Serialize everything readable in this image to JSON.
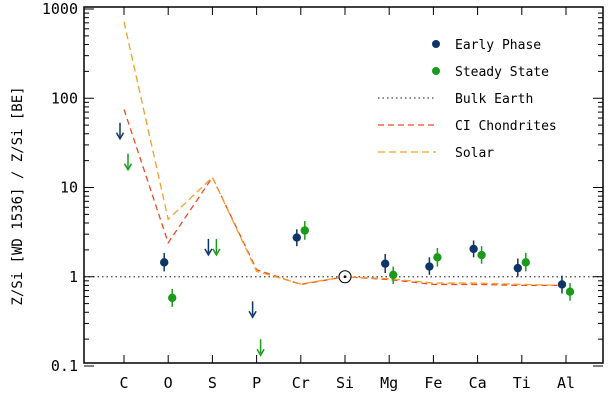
{
  "chart_data": {
    "type": "scatter",
    "title": "",
    "ylabel": "Z/Si  [WD 1536]  /  Z/Si [BE]",
    "xlabel": "",
    "categories": [
      "C",
      "O",
      "S",
      "P",
      "Cr",
      "Si",
      "Mg",
      "Fe",
      "Ca",
      "Ti",
      "Al"
    ],
    "y_scale": "log",
    "ylim": [
      0.1,
      1000
    ],
    "y_ticks": [
      {
        "value": 0.1,
        "label": "0.1"
      },
      {
        "value": 1,
        "label": "1"
      },
      {
        "value": 10,
        "label": "10"
      },
      {
        "value": 100,
        "label": "100"
      },
      {
        "value": 1000,
        "label": "1000"
      }
    ],
    "legend_position": "top-right",
    "colors": {
      "early_phase": "#0d3566",
      "steady_state": "#1a9a1a",
      "bulk_earth": "#444444",
      "ci_chondrites": "#f04a24",
      "solar": "#f2a02a"
    },
    "series": [
      {
        "name": "Early Phase",
        "kind": "points",
        "points": [
          {
            "x": "C",
            "y": 40,
            "upper_limit": true
          },
          {
            "x": "O",
            "y": 1.45,
            "err_lo": 1.15,
            "err_hi": 1.85
          },
          {
            "x": "S",
            "y": 2.0,
            "upper_limit": true
          },
          {
            "x": "P",
            "y": 0.4,
            "upper_limit": true
          },
          {
            "x": "Cr",
            "y": 2.75,
            "err_lo": 2.2,
            "err_hi": 3.4
          },
          {
            "x": "Mg",
            "y": 1.4,
            "err_lo": 1.1,
            "err_hi": 1.8
          },
          {
            "x": "Fe",
            "y": 1.3,
            "err_lo": 1.05,
            "err_hi": 1.65
          },
          {
            "x": "Ca",
            "y": 2.05,
            "err_lo": 1.65,
            "err_hi": 2.55
          },
          {
            "x": "Ti",
            "y": 1.25,
            "err_lo": 1.0,
            "err_hi": 1.6
          },
          {
            "x": "Al",
            "y": 0.82,
            "err_lo": 0.65,
            "err_hi": 1.03
          }
        ]
      },
      {
        "name": "Steady State",
        "kind": "points",
        "points": [
          {
            "x": "C",
            "y": 18,
            "upper_limit": true
          },
          {
            "x": "O",
            "y": 0.58,
            "err_lo": 0.46,
            "err_hi": 0.73
          },
          {
            "x": "S",
            "y": 2.0,
            "upper_limit": true
          },
          {
            "x": "P",
            "y": 0.15,
            "upper_limit": true
          },
          {
            "x": "Cr",
            "y": 3.3,
            "err_lo": 2.6,
            "err_hi": 4.2
          },
          {
            "x": "Mg",
            "y": 1.05,
            "err_lo": 0.83,
            "err_hi": 1.3
          },
          {
            "x": "Fe",
            "y": 1.65,
            "err_lo": 1.3,
            "err_hi": 2.1
          },
          {
            "x": "Ca",
            "y": 1.75,
            "err_lo": 1.4,
            "err_hi": 2.2
          },
          {
            "x": "Ti",
            "y": 1.45,
            "err_lo": 1.15,
            "err_hi": 1.85
          },
          {
            "x": "Al",
            "y": 0.68,
            "err_lo": 0.54,
            "err_hi": 0.85
          }
        ]
      },
      {
        "name": "Bulk Earth",
        "kind": "hline",
        "y": 1
      },
      {
        "name": "CI Chondrites",
        "kind": "line",
        "values": [
          75,
          2.4,
          13,
          1.2,
          0.82,
          1.0,
          0.93,
          0.82,
          0.82,
          0.8,
          0.8
        ]
      },
      {
        "name": "Solar",
        "kind": "line",
        "values": [
          720,
          4.4,
          13,
          1.15,
          0.83,
          1.0,
          0.95,
          0.85,
          0.85,
          0.82,
          0.8
        ]
      }
    ],
    "reference_point": {
      "x": "Si",
      "y": 1,
      "symbol": "sun"
    }
  }
}
